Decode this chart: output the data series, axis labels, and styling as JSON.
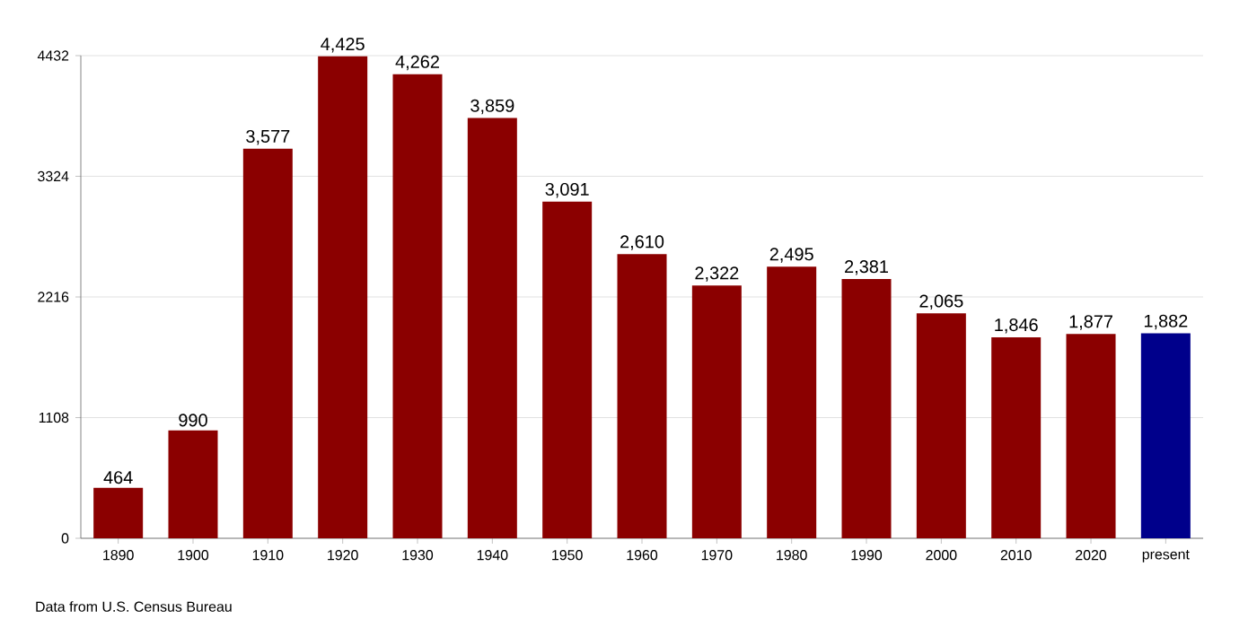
{
  "chart_data": {
    "type": "bar",
    "categories": [
      "1890",
      "1900",
      "1910",
      "1920",
      "1930",
      "1940",
      "1950",
      "1960",
      "1970",
      "1980",
      "1990",
      "2000",
      "2010",
      "2020",
      "present"
    ],
    "values": [
      464,
      990,
      3577,
      4425,
      4262,
      3859,
      3091,
      2610,
      2322,
      2495,
      2381,
      2065,
      1846,
      1877,
      1882
    ],
    "value_labels": [
      "464",
      "990",
      "3,577",
      "4,425",
      "4,262",
      "3,859",
      "3,091",
      "2,610",
      "2,322",
      "2,495",
      "2,381",
      "2,065",
      "1,846",
      "1,877",
      "1,882"
    ],
    "colors": [
      "#8b0000",
      "#8b0000",
      "#8b0000",
      "#8b0000",
      "#8b0000",
      "#8b0000",
      "#8b0000",
      "#8b0000",
      "#8b0000",
      "#8b0000",
      "#8b0000",
      "#8b0000",
      "#8b0000",
      "#8b0000",
      "#00008b"
    ],
    "ylim": [
      0,
      4432
    ],
    "yticks": [
      0,
      1108,
      2216,
      3324,
      4432
    ],
    "grid": "y",
    "annotations": [
      "Data from U.S. Census Bureau"
    ]
  }
}
